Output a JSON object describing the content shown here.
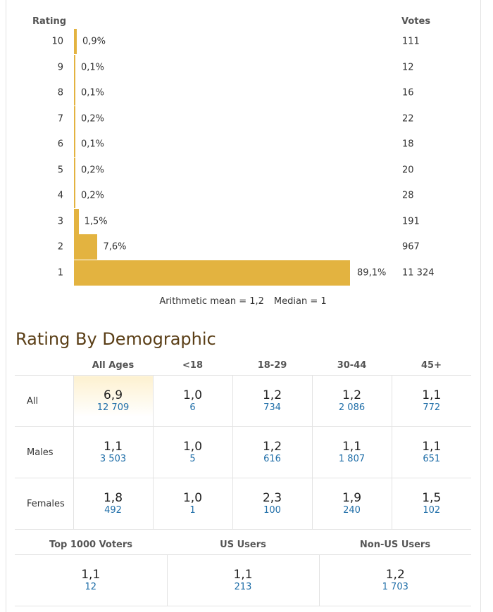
{
  "histogram": {
    "header_rating": "Rating",
    "header_votes": "Votes",
    "bar_color": "#e3b340",
    "rows": [
      {
        "rating": "10",
        "pct_label": "0,9%",
        "pct": 0.9,
        "votes": "111"
      },
      {
        "rating": "9",
        "pct_label": "0,1%",
        "pct": 0.1,
        "votes": "12"
      },
      {
        "rating": "8",
        "pct_label": "0,1%",
        "pct": 0.1,
        "votes": "16"
      },
      {
        "rating": "7",
        "pct_label": "0,2%",
        "pct": 0.2,
        "votes": "22"
      },
      {
        "rating": "6",
        "pct_label": "0,1%",
        "pct": 0.1,
        "votes": "18"
      },
      {
        "rating": "5",
        "pct_label": "0,2%",
        "pct": 0.2,
        "votes": "20"
      },
      {
        "rating": "4",
        "pct_label": "0,2%",
        "pct": 0.2,
        "votes": "28"
      },
      {
        "rating": "3",
        "pct_label": "1,5%",
        "pct": 1.5,
        "votes": "191"
      },
      {
        "rating": "2",
        "pct_label": "7,6%",
        "pct": 7.6,
        "votes": "967"
      },
      {
        "rating": "1",
        "pct_label": "89,1%",
        "pct": 89.1,
        "votes": "11 324"
      }
    ],
    "mean_label": "Arithmetic mean = 1,2",
    "median_label": "Median = 1"
  },
  "demographics": {
    "title": "Rating By Demographic",
    "columns": [
      "All Ages",
      "<18",
      "18-29",
      "30-44",
      "45+"
    ],
    "rows": [
      {
        "label": "All",
        "cells": [
          {
            "rating": "6,9",
            "votes": "12 709"
          },
          {
            "rating": "1,0",
            "votes": "6"
          },
          {
            "rating": "1,2",
            "votes": "734"
          },
          {
            "rating": "1,2",
            "votes": "2 086"
          },
          {
            "rating": "1,1",
            "votes": "772"
          }
        ]
      },
      {
        "label": "Males",
        "cells": [
          {
            "rating": "1,1",
            "votes": "3 503"
          },
          {
            "rating": "1,0",
            "votes": "5"
          },
          {
            "rating": "1,2",
            "votes": "616"
          },
          {
            "rating": "1,1",
            "votes": "1 807"
          },
          {
            "rating": "1,1",
            "votes": "651"
          }
        ]
      },
      {
        "label": "Females",
        "cells": [
          {
            "rating": "1,8",
            "votes": "492"
          },
          {
            "rating": "1,0",
            "votes": "1"
          },
          {
            "rating": "2,3",
            "votes": "100"
          },
          {
            "rating": "1,9",
            "votes": "240"
          },
          {
            "rating": "1,5",
            "votes": "102"
          }
        ]
      }
    ],
    "voter_groups": [
      {
        "label": "Top 1000 Voters",
        "rating": "1,1",
        "votes": "12"
      },
      {
        "label": "US Users",
        "rating": "1,1",
        "votes": "213"
      },
      {
        "label": "Non-US Users",
        "rating": "1,2",
        "votes": "1 703"
      }
    ],
    "vote_link_color": "#1f6ea8"
  }
}
